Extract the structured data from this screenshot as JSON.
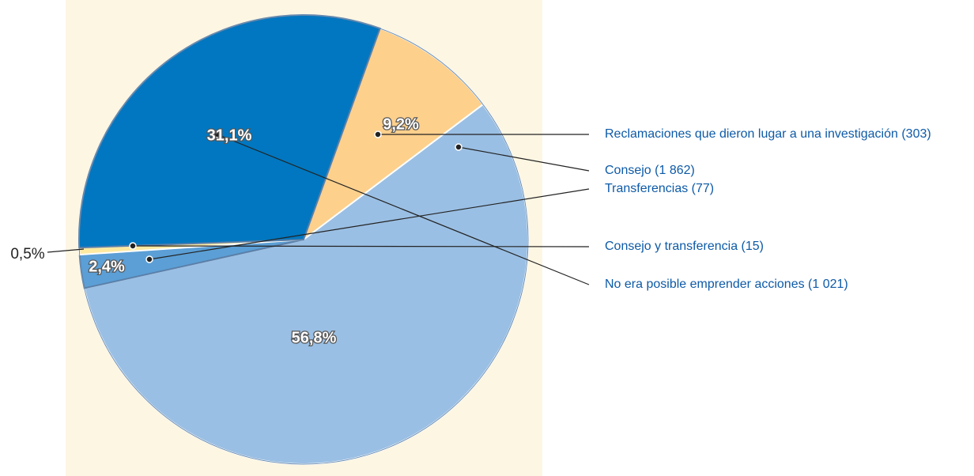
{
  "chart_data": {
    "type": "pie",
    "categories": [
      "Reclamaciones que dieron lugar a una investigación (303)",
      "Consejo (1 862)",
      "Transferencias (77)",
      "Consejo y transferencia (15)",
      "No era posible emprender acciones (1 021)"
    ],
    "values": [
      9.2,
      56.8,
      2.4,
      0.5,
      31.1
    ],
    "value_labels": [
      "9,2%",
      "56,8%",
      "2,4%",
      "0,5%",
      "31,1%"
    ],
    "colors": [
      "#fdd08c",
      "#9abfe4",
      "#5b9fd6",
      "#fde9a0",
      "#0077c0"
    ]
  }
}
